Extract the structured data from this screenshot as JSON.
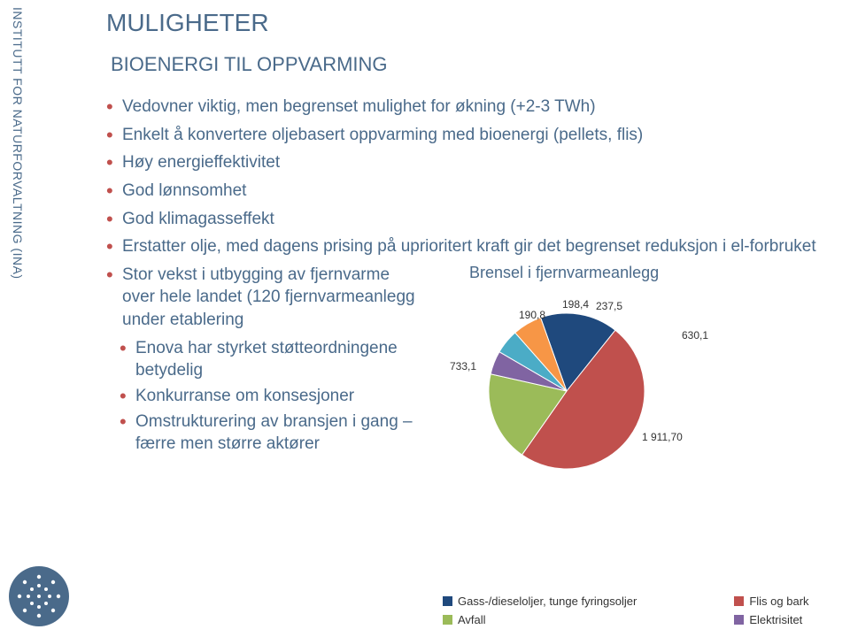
{
  "vertical_label": "INSTITUTT FOR NATURFORVALTNING (INA)",
  "title": "MULIGHETER",
  "subtitle": "BIOENERGI TIL OPPVARMING",
  "bullets": [
    "Vedovner viktig, men begrenset mulighet for økning (+2-3 TWh)",
    "Enkelt å konvertere oljebasert oppvarming med bioenergi (pellets, flis)",
    "Høy energieffektivitet",
    "God lønnsomhet",
    "God klimagasseffekt",
    "Erstatter olje, med dagens prising på uprioritert kraft gir det begrenset reduksjon i el-forbruket",
    "Stor vekst i utbygging av fjernvarme over hele landet (120 fjernvarmeanlegg under etablering"
  ],
  "subbullets": [
    "Enova har styrket støtteordningene betydelig",
    "Konkurranse om konsesjoner",
    "Omstrukturering av bransjen i gang – færre men større aktører"
  ],
  "chart": {
    "title": "Brensel i fjernvarmeanlegg",
    "type": "pie",
    "background": "#ffffff",
    "series": [
      {
        "label": "Gass-/dieseloljer, tunge fyringsoljer",
        "value": 630.1,
        "color": "#1f497d"
      },
      {
        "label": "Flis og bark",
        "value": 1911.7,
        "color": "#c0504d"
      },
      {
        "label": "Avfall",
        "value": 733.1,
        "color": "#9bbb59"
      },
      {
        "label": "Elektrisitet",
        "value": 190.8,
        "color": "#8064a2"
      },
      {
        "label": "_segA",
        "value": 198.4,
        "color": "#4bacc6"
      },
      {
        "label": "_segB",
        "value": 237.5,
        "color": "#f79646"
      }
    ],
    "value_labels": [
      "733,1",
      "190,8",
      "198,4",
      "237,5",
      "630,1",
      "1 911,70"
    ],
    "legend": [
      {
        "label": "Gass-/dieseloljer, tunge fyringsoljer",
        "color": "#1f497d"
      },
      {
        "label": "Flis og bark",
        "color": "#c0504d"
      },
      {
        "label": "Avfall",
        "color": "#9bbb59"
      },
      {
        "label": "Elektrisitet",
        "color": "#8064a2"
      }
    ],
    "label_fontsize": 12,
    "title_fontsize": 18
  },
  "colors": {
    "text_primary": "#4a6a8a",
    "bullet": "#c0504d"
  }
}
